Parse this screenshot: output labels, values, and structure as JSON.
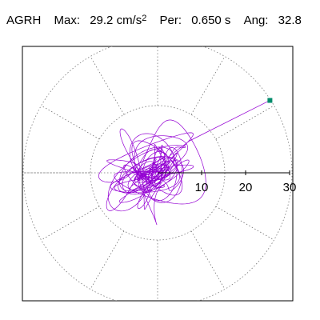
{
  "header": {
    "station": "AGRH",
    "max_label": "Max:",
    "max_value": "29.2 cm/s",
    "max_unit_exponent": "2",
    "period_label": "Per:",
    "period_value": "0.650 s",
    "angle_label": "Ang:",
    "angle_value": "32.8"
  },
  "chart_data": {
    "type": "line",
    "title": "",
    "polar_grid": true,
    "radial_ticks": [
      10,
      20,
      30
    ],
    "radial_tick_labels": [
      "10",
      "20",
      "30"
    ],
    "radial_max": 30,
    "spoke_angles_deg": [
      0,
      30,
      60,
      90,
      120,
      150,
      180,
      210,
      240,
      270,
      300,
      330
    ],
    "peak": {
      "magnitude": 29.2,
      "angle_deg": 32.8
    },
    "trace_color": "#9400d3",
    "peak_marker_color": "#008b6b",
    "grid_color": "#777777"
  }
}
